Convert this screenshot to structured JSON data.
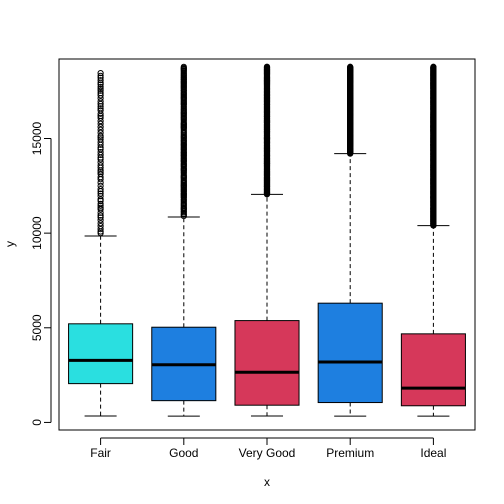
{
  "chart_data": {
    "type": "box",
    "xlabel": "x",
    "ylabel": "y",
    "ylim": [
      -400,
      19200
    ],
    "yticks": [
      0,
      5000,
      10000,
      15000
    ],
    "grid": false,
    "legend": "none",
    "categories": [
      "Fair",
      "Good",
      "Very Good",
      "Premium",
      "Ideal"
    ],
    "boxes": [
      {
        "category": "Fair",
        "color": "#2ADFE0",
        "min": 340,
        "q1": 2050,
        "median": 3280,
        "q3": 5210,
        "whisker_high": 9850,
        "outliers_from": 10000,
        "outliers_to": 18600,
        "outlier_density": "sparse"
      },
      {
        "category": "Good",
        "color": "#1E7FE0",
        "min": 330,
        "q1": 1150,
        "median": 3050,
        "q3": 5030,
        "whisker_high": 10850,
        "outliers_from": 10900,
        "outliers_to": 18800,
        "outlier_density": "medium"
      },
      {
        "category": "Very Good",
        "color": "#D6385A",
        "min": 340,
        "q1": 910,
        "median": 2650,
        "q3": 5380,
        "whisker_high": 12050,
        "outliers_from": 12050,
        "outliers_to": 18800,
        "outlier_density": "dense"
      },
      {
        "category": "Premium",
        "color": "#1E7FE0",
        "min": 330,
        "q1": 1050,
        "median": 3190,
        "q3": 6300,
        "whisker_high": 14200,
        "outliers_from": 14200,
        "outliers_to": 18800,
        "outlier_density": "dense"
      },
      {
        "category": "Ideal",
        "color": "#D6385A",
        "min": 330,
        "q1": 880,
        "median": 1810,
        "q3": 4680,
        "whisker_high": 10400,
        "outliers_from": 10400,
        "outliers_to": 18800,
        "outlier_density": "dense"
      }
    ]
  }
}
